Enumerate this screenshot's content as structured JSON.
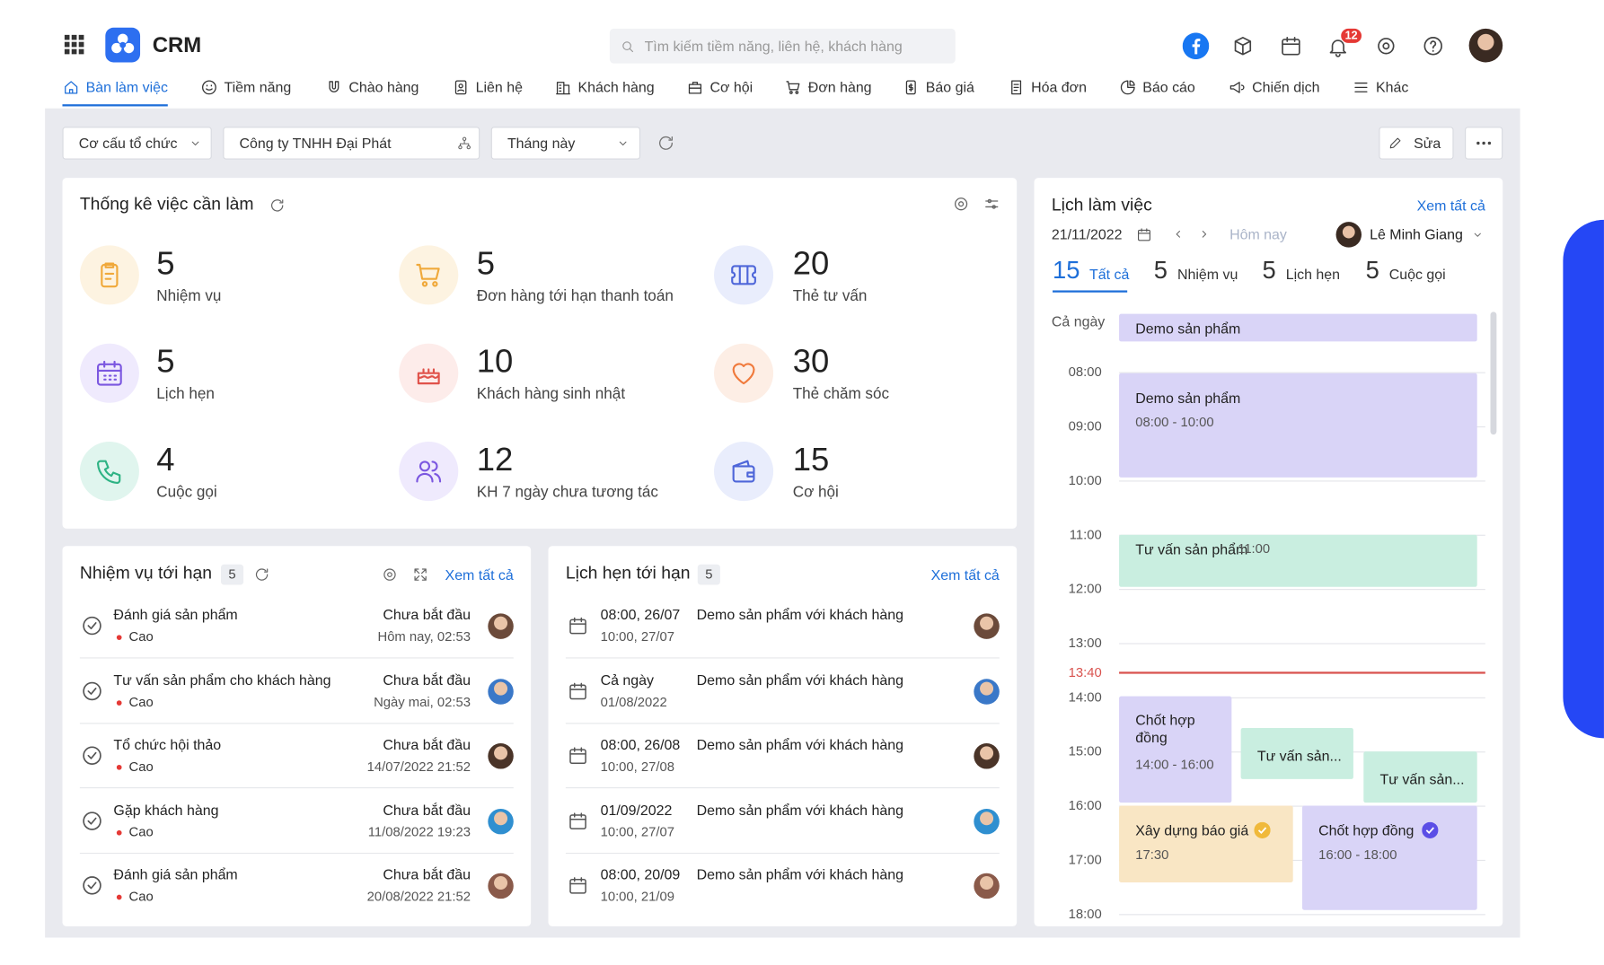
{
  "header": {
    "app": "CRM",
    "search_placeholder": "Tìm kiếm tiềm năng, liên hệ, khách hàng",
    "notification_count": 12
  },
  "nav": [
    "Bàn làm việc",
    "Tiềm năng",
    "Chào hàng",
    "Liên hệ",
    "Khách hàng",
    "Cơ hội",
    "Đơn hàng",
    "Báo giá",
    "Hóa đơn",
    "Báo cáo",
    "Chiến dịch",
    "Khác"
  ],
  "filters": {
    "org": "Cơ cấu tổ chức",
    "company": "Công ty TNHH Đại Phát",
    "period": "Tháng này",
    "edit": "Sửa"
  },
  "stats": {
    "title": "Thống kê việc cần làm",
    "items": [
      {
        "value": 5,
        "label": "Nhiệm vụ"
      },
      {
        "value": 5,
        "label": "Đơn hàng tới hạn thanh toán"
      },
      {
        "value": 20,
        "label": "Thẻ tư vấn"
      },
      {
        "value": 5,
        "label": "Lịch hẹn"
      },
      {
        "value": 10,
        "label": "Khách hàng sinh nhật"
      },
      {
        "value": 30,
        "label": "Thẻ chăm sóc"
      },
      {
        "value": 4,
        "label": "Cuộc gọi"
      },
      {
        "value": 12,
        "label": "KH 7 ngày chưa tương tác"
      },
      {
        "value": 15,
        "label": "Cơ hội"
      }
    ]
  },
  "tasks": {
    "title": "Nhiệm vụ tới hạn",
    "count": 5,
    "view_all": "Xem tất cả",
    "items": [
      {
        "name": "Đánh giá sản phẩm",
        "priority": "Cao",
        "status": "Chưa bắt đầu",
        "time": "Hôm nay, 02:53"
      },
      {
        "name": "Tư vấn sản phẩm cho khách hàng",
        "priority": "Cao",
        "status": "Chưa bắt đầu",
        "time": "Ngày mai, 02:53"
      },
      {
        "name": "Tổ chức hội thảo",
        "priority": "Cao",
        "status": "Chưa bắt đầu",
        "time": "14/07/2022 21:52"
      },
      {
        "name": "Gặp khách hàng",
        "priority": "Cao",
        "status": "Chưa bắt đầu",
        "time": "11/08/2022 19:23"
      },
      {
        "name": "Đánh giá sản phẩm",
        "priority": "Cao",
        "status": "Chưa bắt đầu",
        "time": "20/08/2022 21:52"
      }
    ]
  },
  "appointments": {
    "title": "Lịch hẹn tới hạn",
    "count": 5,
    "view_all": "Xem tất cả",
    "items": [
      {
        "start": "08:00, 26/07",
        "end": "10:00, 27/07",
        "title": "Demo sản phẩm với khách hàng"
      },
      {
        "start": "Cả ngày",
        "end": "01/08/2022",
        "title": "Demo sản phẩm với khách hàng"
      },
      {
        "start": "08:00, 26/08",
        "end": "10:00, 27/08",
        "title": "Demo sản phẩm với khách hàng"
      },
      {
        "start": "01/09/2022",
        "end": "10:00, 27/07",
        "title": "Demo sản phẩm với khách hàng"
      },
      {
        "start": "08:00, 20/09",
        "end": "10:00, 21/09",
        "title": "Demo sản phẩm với khách hàng"
      }
    ]
  },
  "calendar": {
    "title": "Lịch làm việc",
    "view_all": "Xem tất cả",
    "date": "21/11/2022",
    "today": "Hôm nay",
    "user": "Lê Minh Giang",
    "tabs": [
      {
        "count": 15,
        "label": "Tất cả"
      },
      {
        "count": 5,
        "label": "Nhiệm vụ"
      },
      {
        "count": 5,
        "label": "Lịch hẹn"
      },
      {
        "count": 5,
        "label": "Cuộc gọi"
      }
    ],
    "all_day_label": "Cả ngày",
    "hours": [
      "08:00",
      "09:00",
      "10:00",
      "11:00",
      "12:00",
      "13:00",
      "14:00",
      "15:00",
      "16:00",
      "17:00",
      "18:00"
    ],
    "now": "13:40",
    "events": [
      {
        "title": "Demo sản phẩm"
      },
      {
        "title": "Demo sản phẩm",
        "time": "08:00 - 10:00"
      },
      {
        "title": "Tư vấn sản phẩm",
        "time": "11:00"
      },
      {
        "title": "Chốt hợp đồng",
        "time": "14:00 - 16:00"
      },
      {
        "title": "Tư vấn sản..."
      },
      {
        "title": "Tư vấn sản..."
      },
      {
        "title": "Xây dựng báo giá",
        "time": "17:30"
      },
      {
        "title": "Chốt hợp đồng",
        "time": "16:00 - 18:00"
      }
    ]
  }
}
